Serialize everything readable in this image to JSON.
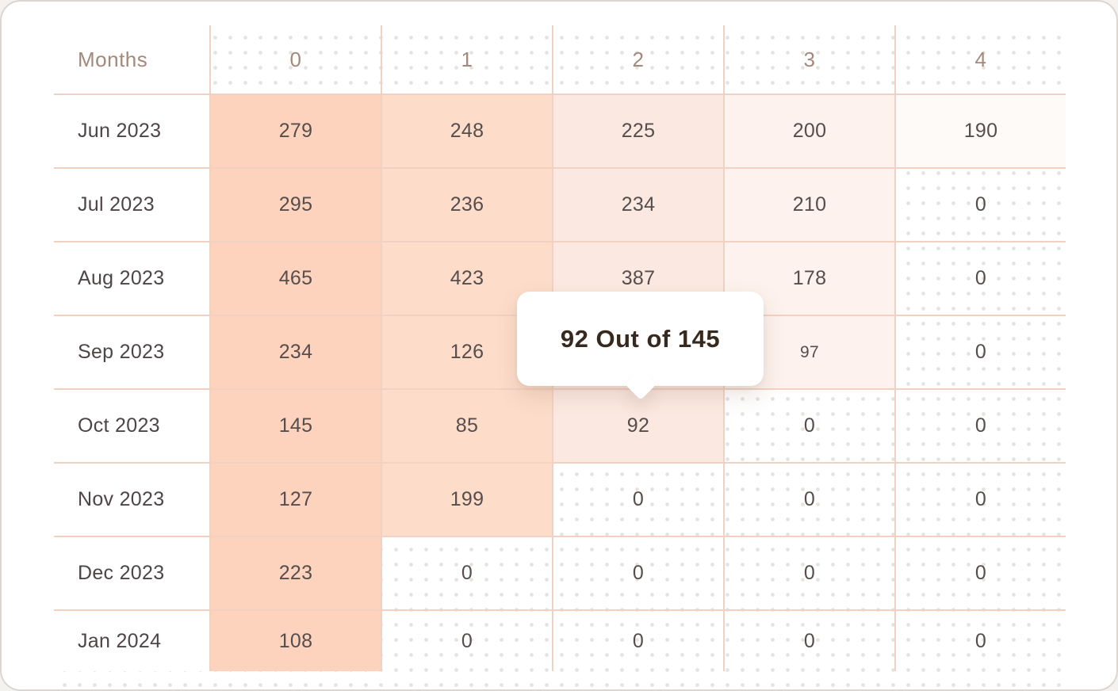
{
  "colors": {
    "heat_scale": [
      "#fed3bd",
      "#fddcca",
      "#fbe9e1",
      "#fdf2ed",
      "#fefaf7"
    ],
    "grid_line": "#f1d2c2",
    "header_text": "#a3897c",
    "cell_text": "#564d4d",
    "label_text": "#4e4546",
    "tooltip_text": "#38291e",
    "dot_color": "#e6e2de"
  },
  "table": {
    "corner_label": "Months",
    "column_headers": [
      "0",
      "1",
      "2",
      "3",
      "4"
    ],
    "rows": [
      {
        "label": "Jun 2023",
        "values": [
          279,
          248,
          225,
          200,
          190
        ]
      },
      {
        "label": "Jul 2023",
        "values": [
          295,
          236,
          234,
          210,
          0
        ]
      },
      {
        "label": "Aug 2023",
        "values": [
          465,
          423,
          387,
          178,
          0
        ]
      },
      {
        "label": "Sep 2023",
        "values": [
          234,
          126,
          null,
          97,
          0
        ]
      },
      {
        "label": "Oct 2023",
        "values": [
          145,
          85,
          92,
          0,
          0
        ]
      },
      {
        "label": "Nov 2023",
        "values": [
          127,
          199,
          0,
          0,
          0
        ]
      },
      {
        "label": "Dec 2023",
        "values": [
          223,
          0,
          0,
          0,
          0
        ]
      },
      {
        "label": "Jan 2024",
        "values": [
          108,
          0,
          0,
          0,
          0
        ]
      }
    ],
    "small_cell": {
      "row_label": "Sep 2023",
      "col_index": 3
    }
  },
  "tooltip": {
    "text": "92 Out of 145",
    "target_row": "Oct 2023",
    "target_column": "2"
  }
}
